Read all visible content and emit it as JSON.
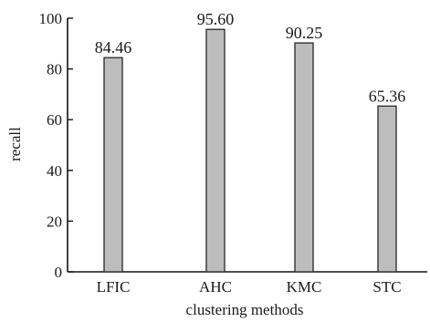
{
  "chart_data": {
    "type": "bar",
    "title": "",
    "xlabel": "clustering methods",
    "ylabel": "recall",
    "categories": [
      "LFIC",
      "AHC",
      "KMC",
      "STC"
    ],
    "values": [
      84.46,
      95.6,
      90.25,
      65.36
    ],
    "data_labels": [
      "84.46",
      "95.60",
      "90.25",
      "65.36"
    ],
    "yticks": [
      0,
      20,
      40,
      60,
      80,
      100
    ],
    "ylim": [
      0,
      100
    ],
    "grid": false,
    "legend": "none",
    "bar_color": "#bdbdbd",
    "bar_edge_color": "#333333"
  }
}
